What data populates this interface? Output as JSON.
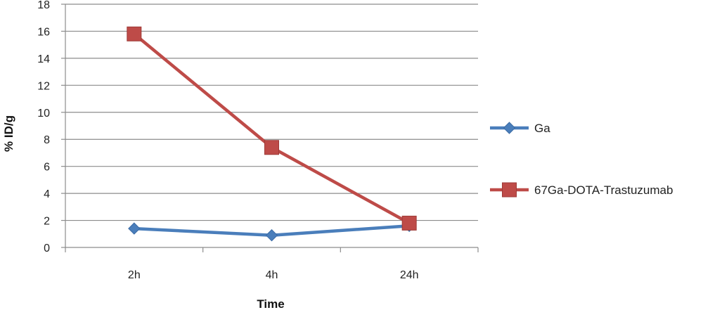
{
  "chart_data": {
    "type": "line",
    "categories": [
      "2h",
      "4h",
      "24h"
    ],
    "series": [
      {
        "name": "Ga",
        "values": [
          1.4,
          0.9,
          1.6
        ],
        "color": "#4a7ebb",
        "marker": "diamond"
      },
      {
        "name": "67Ga-DOTA-Trastuzumab",
        "values": [
          15.8,
          7.4,
          1.8
        ],
        "color": "#be4b48",
        "marker": "square"
      }
    ],
    "xlabel": "Time",
    "ylabel": "% ID/g",
    "ylim": [
      0,
      18
    ],
    "ytick_step": 2,
    "grid": true,
    "legend": "right"
  }
}
